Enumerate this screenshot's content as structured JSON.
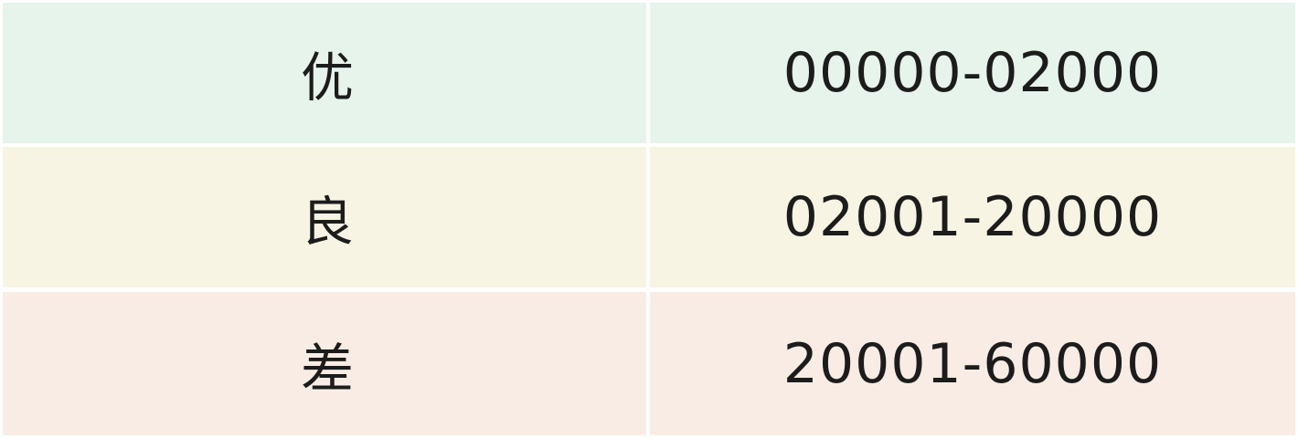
{
  "rows": [
    {
      "grade": "优",
      "range": "00000-02000",
      "color": "#e6f4eb"
    },
    {
      "grade": "良",
      "range": "02001-20000",
      "color": "#f7f4e3"
    },
    {
      "grade": "差",
      "range": "20001-60000",
      "color": "#f8ece4"
    }
  ]
}
